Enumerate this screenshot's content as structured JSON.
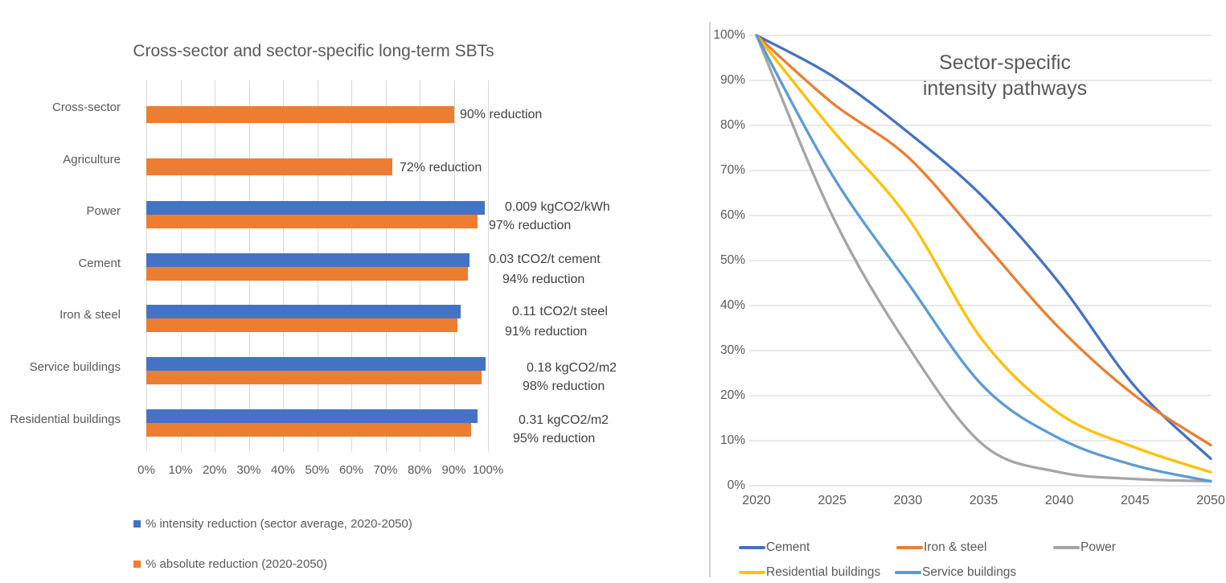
{
  "colors": {
    "blue": "#4472C4",
    "orange": "#ED7D31",
    "gray": "#A5A5A5",
    "yellow": "#FFC000",
    "light_blue": "#5B9BD5",
    "gridline": "#D9D9D9",
    "axis_line": "#BFBFBF",
    "tick_text": "#595959",
    "label_text": "#404040",
    "title_text": "#595959"
  },
  "chart_data": [
    {
      "type": "bar",
      "orientation": "horizontal",
      "title": "Cross-sector and sector-specific long-term SBTs",
      "categories": [
        "Cross-sector",
        "Agriculture",
        "Power",
        "Cement",
        "Iron & steel",
        "Service buildings",
        "Residential buildings"
      ],
      "series": [
        {
          "name": "% intensity reduction (sector average, 2020-2050)",
          "color": "#4472C4",
          "values": [
            null,
            null,
            99,
            94.5,
            92,
            99.3,
            97
          ]
        },
        {
          "name": "% absolute reduction (2020-2050)",
          "color": "#ED7D31",
          "values": [
            90,
            72,
            97,
            94,
            91,
            98,
            95
          ]
        }
      ],
      "data_labels": [
        [
          "90% reduction"
        ],
        [
          "72% reduction"
        ],
        [
          "0.009 kgCO2/kWh",
          "97% reduction"
        ],
        [
          "0.03 tCO2/t cement",
          "94% reduction"
        ],
        [
          "0.11 tCO2/t steel",
          "91% reduction"
        ],
        [
          "0.18 kgCO2/m2",
          "98% reduction"
        ],
        [
          "0.31 kgCO2/m2",
          "95% reduction"
        ]
      ],
      "x_ticks": [
        "0%",
        "10%",
        "20%",
        "30%",
        "40%",
        "50%",
        "60%",
        "70%",
        "80%",
        "90%",
        "100%"
      ],
      "xlim": [
        0,
        100
      ],
      "grid": "vertical",
      "legend_position": "bottom-left"
    },
    {
      "type": "line",
      "title_lines": [
        "Sector-specific",
        "intensity pathways"
      ],
      "x": [
        2020,
        2025,
        2030,
        2035,
        2040,
        2045,
        2050
      ],
      "x_ticks": [
        "2020",
        "2025",
        "2030",
        "2035",
        "2040",
        "2045",
        "2050"
      ],
      "y_ticks": [
        "100%",
        "90%",
        "80%",
        "70%",
        "60%",
        "50%",
        "40%",
        "30%",
        "20%",
        "10%",
        "0%"
      ],
      "ylim": [
        0,
        100
      ],
      "series": [
        {
          "name": "Cement",
          "color": "#4472C4",
          "values": [
            100,
            91,
            78.5,
            64,
            45,
            22,
            6
          ]
        },
        {
          "name": "Iron & steel",
          "color": "#ED7D31",
          "values": [
            100,
            85,
            73,
            54,
            35,
            20,
            9
          ]
        },
        {
          "name": "Power",
          "color": "#A5A5A5",
          "values": [
            100,
            60,
            31,
            9,
            3,
            1.5,
            1
          ]
        },
        {
          "name": "Residential buildings",
          "color": "#FFC000",
          "values": [
            100,
            79,
            59.5,
            32,
            16,
            8.5,
            3
          ]
        },
        {
          "name": "Service buildings",
          "color": "#5B9BD5",
          "values": [
            100,
            69,
            45,
            22,
            10.5,
            4.5,
            1
          ]
        }
      ],
      "grid": "horizontal",
      "legend_position": "bottom"
    }
  ]
}
